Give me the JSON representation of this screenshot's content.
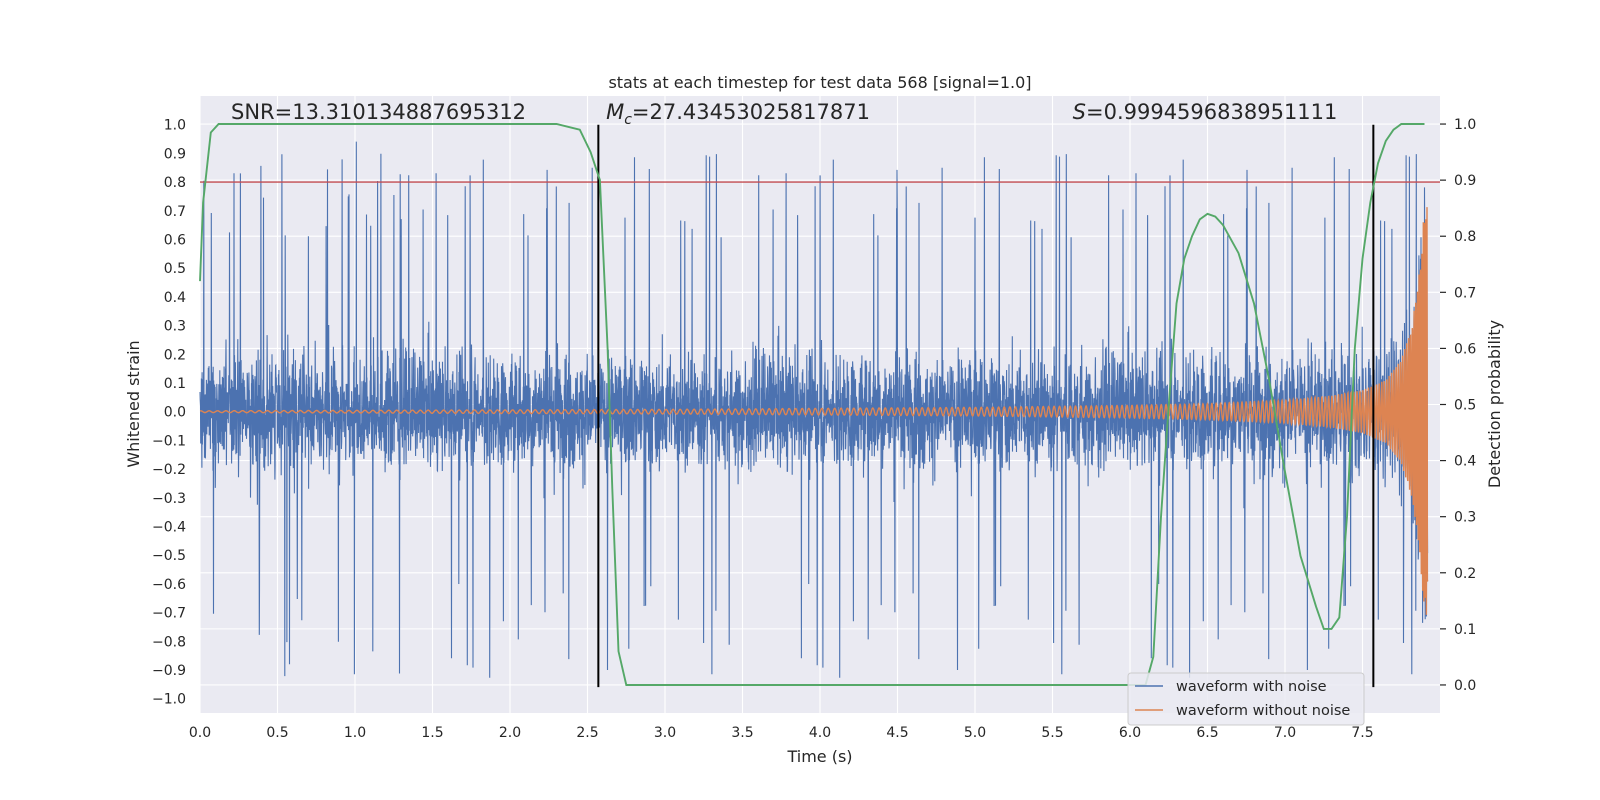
{
  "chart_data": {
    "type": "line",
    "title": "stats at each timestep for test data 568 [signal=1.0]",
    "xlabel": "Time (s)",
    "ylabel": "Whitened strain",
    "y2label": "Detection probability",
    "xlim": [
      0.0,
      8.0
    ],
    "ylim": [
      -1.05,
      1.1
    ],
    "y2lim": [
      -0.05,
      1.05
    ],
    "xticks": [
      0.0,
      0.5,
      1.0,
      1.5,
      2.0,
      2.5,
      3.0,
      3.5,
      4.0,
      4.5,
      5.0,
      5.5,
      6.0,
      6.5,
      7.0,
      7.5
    ],
    "xtick_labels": [
      "0.0",
      "0.5",
      "1.0",
      "1.5",
      "2.0",
      "2.5",
      "3.0",
      "3.5",
      "4.0",
      "4.5",
      "5.0",
      "5.5",
      "6.0",
      "6.5",
      "7.0",
      "7.5"
    ],
    "yticks": [
      1.0,
      0.9,
      0.8,
      0.7,
      0.6,
      0.5,
      0.4,
      0.3,
      0.2,
      0.1,
      0.0,
      -0.1,
      -0.2,
      -0.3,
      -0.4,
      -0.5,
      -0.6,
      -0.7,
      -0.8,
      -0.9,
      -1.0
    ],
    "ytick_labels": [
      "1.0",
      "0.9",
      "0.8",
      "0.7",
      "0.6",
      "0.5",
      "0.4",
      "0.3",
      "0.2",
      "0.1",
      "0.0",
      "−0.1",
      "−0.2",
      "−0.3",
      "−0.4",
      "−0.5",
      "−0.6",
      "−0.7",
      "−0.8",
      "−0.9",
      "−1.0"
    ],
    "y2ticks": [
      1.0,
      0.9,
      0.8,
      0.7,
      0.6,
      0.5,
      0.4,
      0.3,
      0.2,
      0.1,
      0.0
    ],
    "y2tick_labels": [
      "1.0",
      "0.9",
      "0.8",
      "0.7",
      "0.6",
      "0.5",
      "0.4",
      "0.3",
      "0.2",
      "0.1",
      "0.0"
    ],
    "series": [
      {
        "name": "waveform with noise",
        "color": "#4c72b0",
        "axis": "left",
        "description": "noisy whitened strain, amplitude mostly within ±0.5 with spikes to about ±0.95"
      },
      {
        "name": "waveform without noise",
        "color": "#dd8452",
        "axis": "left",
        "description": "chirp signal growing from ~0 to peak about +0.72 / -0.72 near t=7.9 s",
        "envelope_t": [
          0.0,
          3.0,
          5.0,
          6.0,
          6.5,
          7.0,
          7.3,
          7.5,
          7.65,
          7.75,
          7.82,
          7.87,
          7.9
        ],
        "envelope_amp": [
          0.003,
          0.008,
          0.015,
          0.022,
          0.028,
          0.04,
          0.055,
          0.075,
          0.11,
          0.18,
          0.3,
          0.5,
          0.72
        ]
      },
      {
        "name": "detection probability",
        "color": "#55a868",
        "axis": "right",
        "x": [
          0.0,
          0.02,
          0.07,
          0.12,
          0.2,
          0.4,
          1.0,
          2.0,
          2.3,
          2.45,
          2.52,
          2.58,
          2.63,
          2.66,
          2.7,
          2.75,
          2.8,
          2.85,
          3.0,
          4.0,
          5.0,
          6.0,
          6.1,
          6.15,
          6.2,
          6.25,
          6.3,
          6.35,
          6.4,
          6.45,
          6.5,
          6.55,
          6.6,
          6.7,
          6.8,
          6.9,
          7.0,
          7.1,
          7.2,
          7.25,
          7.3,
          7.35,
          7.4,
          7.45,
          7.5,
          7.55,
          7.6,
          7.65,
          7.7,
          7.75,
          7.8,
          7.9
        ],
        "y": [
          0.72,
          0.86,
          0.985,
          1.0,
          1.0,
          1.0,
          1.0,
          1.0,
          1.0,
          0.99,
          0.95,
          0.9,
          0.6,
          0.35,
          0.06,
          0.0,
          0.0,
          0.0,
          0.0,
          0.0,
          0.0,
          0.0,
          0.0,
          0.05,
          0.3,
          0.5,
          0.68,
          0.76,
          0.8,
          0.83,
          0.84,
          0.835,
          0.82,
          0.77,
          0.68,
          0.54,
          0.38,
          0.23,
          0.14,
          0.1,
          0.1,
          0.12,
          0.3,
          0.6,
          0.76,
          0.86,
          0.93,
          0.97,
          0.99,
          1.0,
          1.0,
          1.0
        ]
      }
    ],
    "hlines": [
      {
        "y": 0.8,
        "axis": "left",
        "color": "#c44e52"
      }
    ],
    "vlines": [
      {
        "x": 2.57,
        "ymin": -0.96,
        "ymax": 1.0,
        "color": "#000000"
      },
      {
        "x": 7.57,
        "ymin": -0.96,
        "ymax": 1.0,
        "color": "#000000"
      }
    ],
    "annotations": [
      {
        "text": "SNR=13.310134887695312",
        "x": 0.2,
        "y": 1.02
      },
      {
        "text": "=27.43453025817871",
        "prefix": "M",
        "subscript": "c",
        "x": 2.62,
        "y": 1.02
      },
      {
        "text": "=0.9994596838951111",
        "prefix": "S",
        "x": 5.63,
        "y": 1.02
      }
    ],
    "legend": {
      "placement": "lower-right",
      "entries": [
        {
          "label": "waveform with noise",
          "color": "#4c72b0"
        },
        {
          "label": "waveform without noise",
          "color": "#dd8452"
        }
      ]
    },
    "grid": true,
    "colors": {
      "background": "#eaeaf2",
      "grid": "#ffffff",
      "noise": "#4c72b0",
      "clean": "#dd8452",
      "prob": "#55a868",
      "threshold": "#c44e52",
      "vline": "#000000"
    }
  }
}
